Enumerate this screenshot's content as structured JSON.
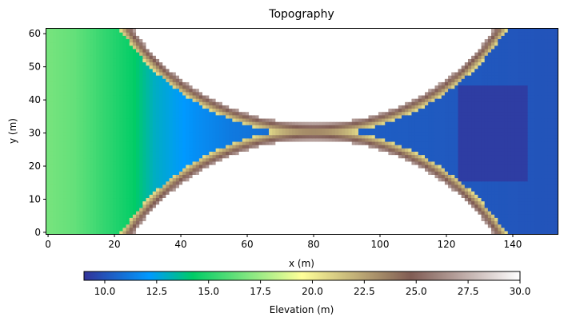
{
  "chart_data": {
    "type": "heatmap",
    "title": "Topography",
    "xlabel": "x (m)",
    "ylabel": "y (m)",
    "xlim": [
      -0.5,
      153.5
    ],
    "ylim": [
      -0.5,
      61.5
    ],
    "x_ticks": [
      0,
      20,
      40,
      60,
      80,
      100,
      120,
      140
    ],
    "y_ticks": [
      0,
      10,
      20,
      30,
      40,
      50,
      60
    ],
    "colorbar": {
      "label": "Elevation (m)",
      "range": [
        9.0,
        30.0
      ],
      "ticks": [
        "10.0",
        "12.5",
        "15.0",
        "17.5",
        "20.0",
        "22.5",
        "25.0",
        "27.5",
        "30.0"
      ],
      "tick_values": [
        10.0,
        12.5,
        15.0,
        17.5,
        20.0,
        22.5,
        25.0,
        27.5,
        30.0
      ],
      "colormap": "terrain",
      "orientation": "horizontal",
      "placement": "bottom"
    },
    "grid": false,
    "surface": {
      "slope_profile": [
        {
          "x": 0,
          "elevation": 16.7
        },
        {
          "x": 8,
          "elevation": 16.3
        },
        {
          "x": 18,
          "elevation": 15.2
        },
        {
          "x": 26,
          "elevation": 14.3
        },
        {
          "x": 32,
          "elevation": 13.0
        },
        {
          "x": 38,
          "elevation": 12.4
        },
        {
          "x": 45,
          "elevation": 11.8
        },
        {
          "x": 55,
          "elevation": 11.2
        },
        {
          "x": 70,
          "elevation": 10.7
        },
        {
          "x": 100,
          "elevation": 10.3
        },
        {
          "x": 153,
          "elevation": 10.0
        }
      ],
      "walls": [
        {
          "center_x": 80,
          "center_y": 99,
          "radius": 66,
          "wall_elevation": 30.0
        },
        {
          "center_x": 80,
          "center_y": -38,
          "radius": 66,
          "wall_elevation": 30.0
        }
      ],
      "depression": {
        "x": [
          124,
          144
        ],
        "y": [
          16,
          44
        ],
        "elevation": 9.3
      }
    }
  }
}
